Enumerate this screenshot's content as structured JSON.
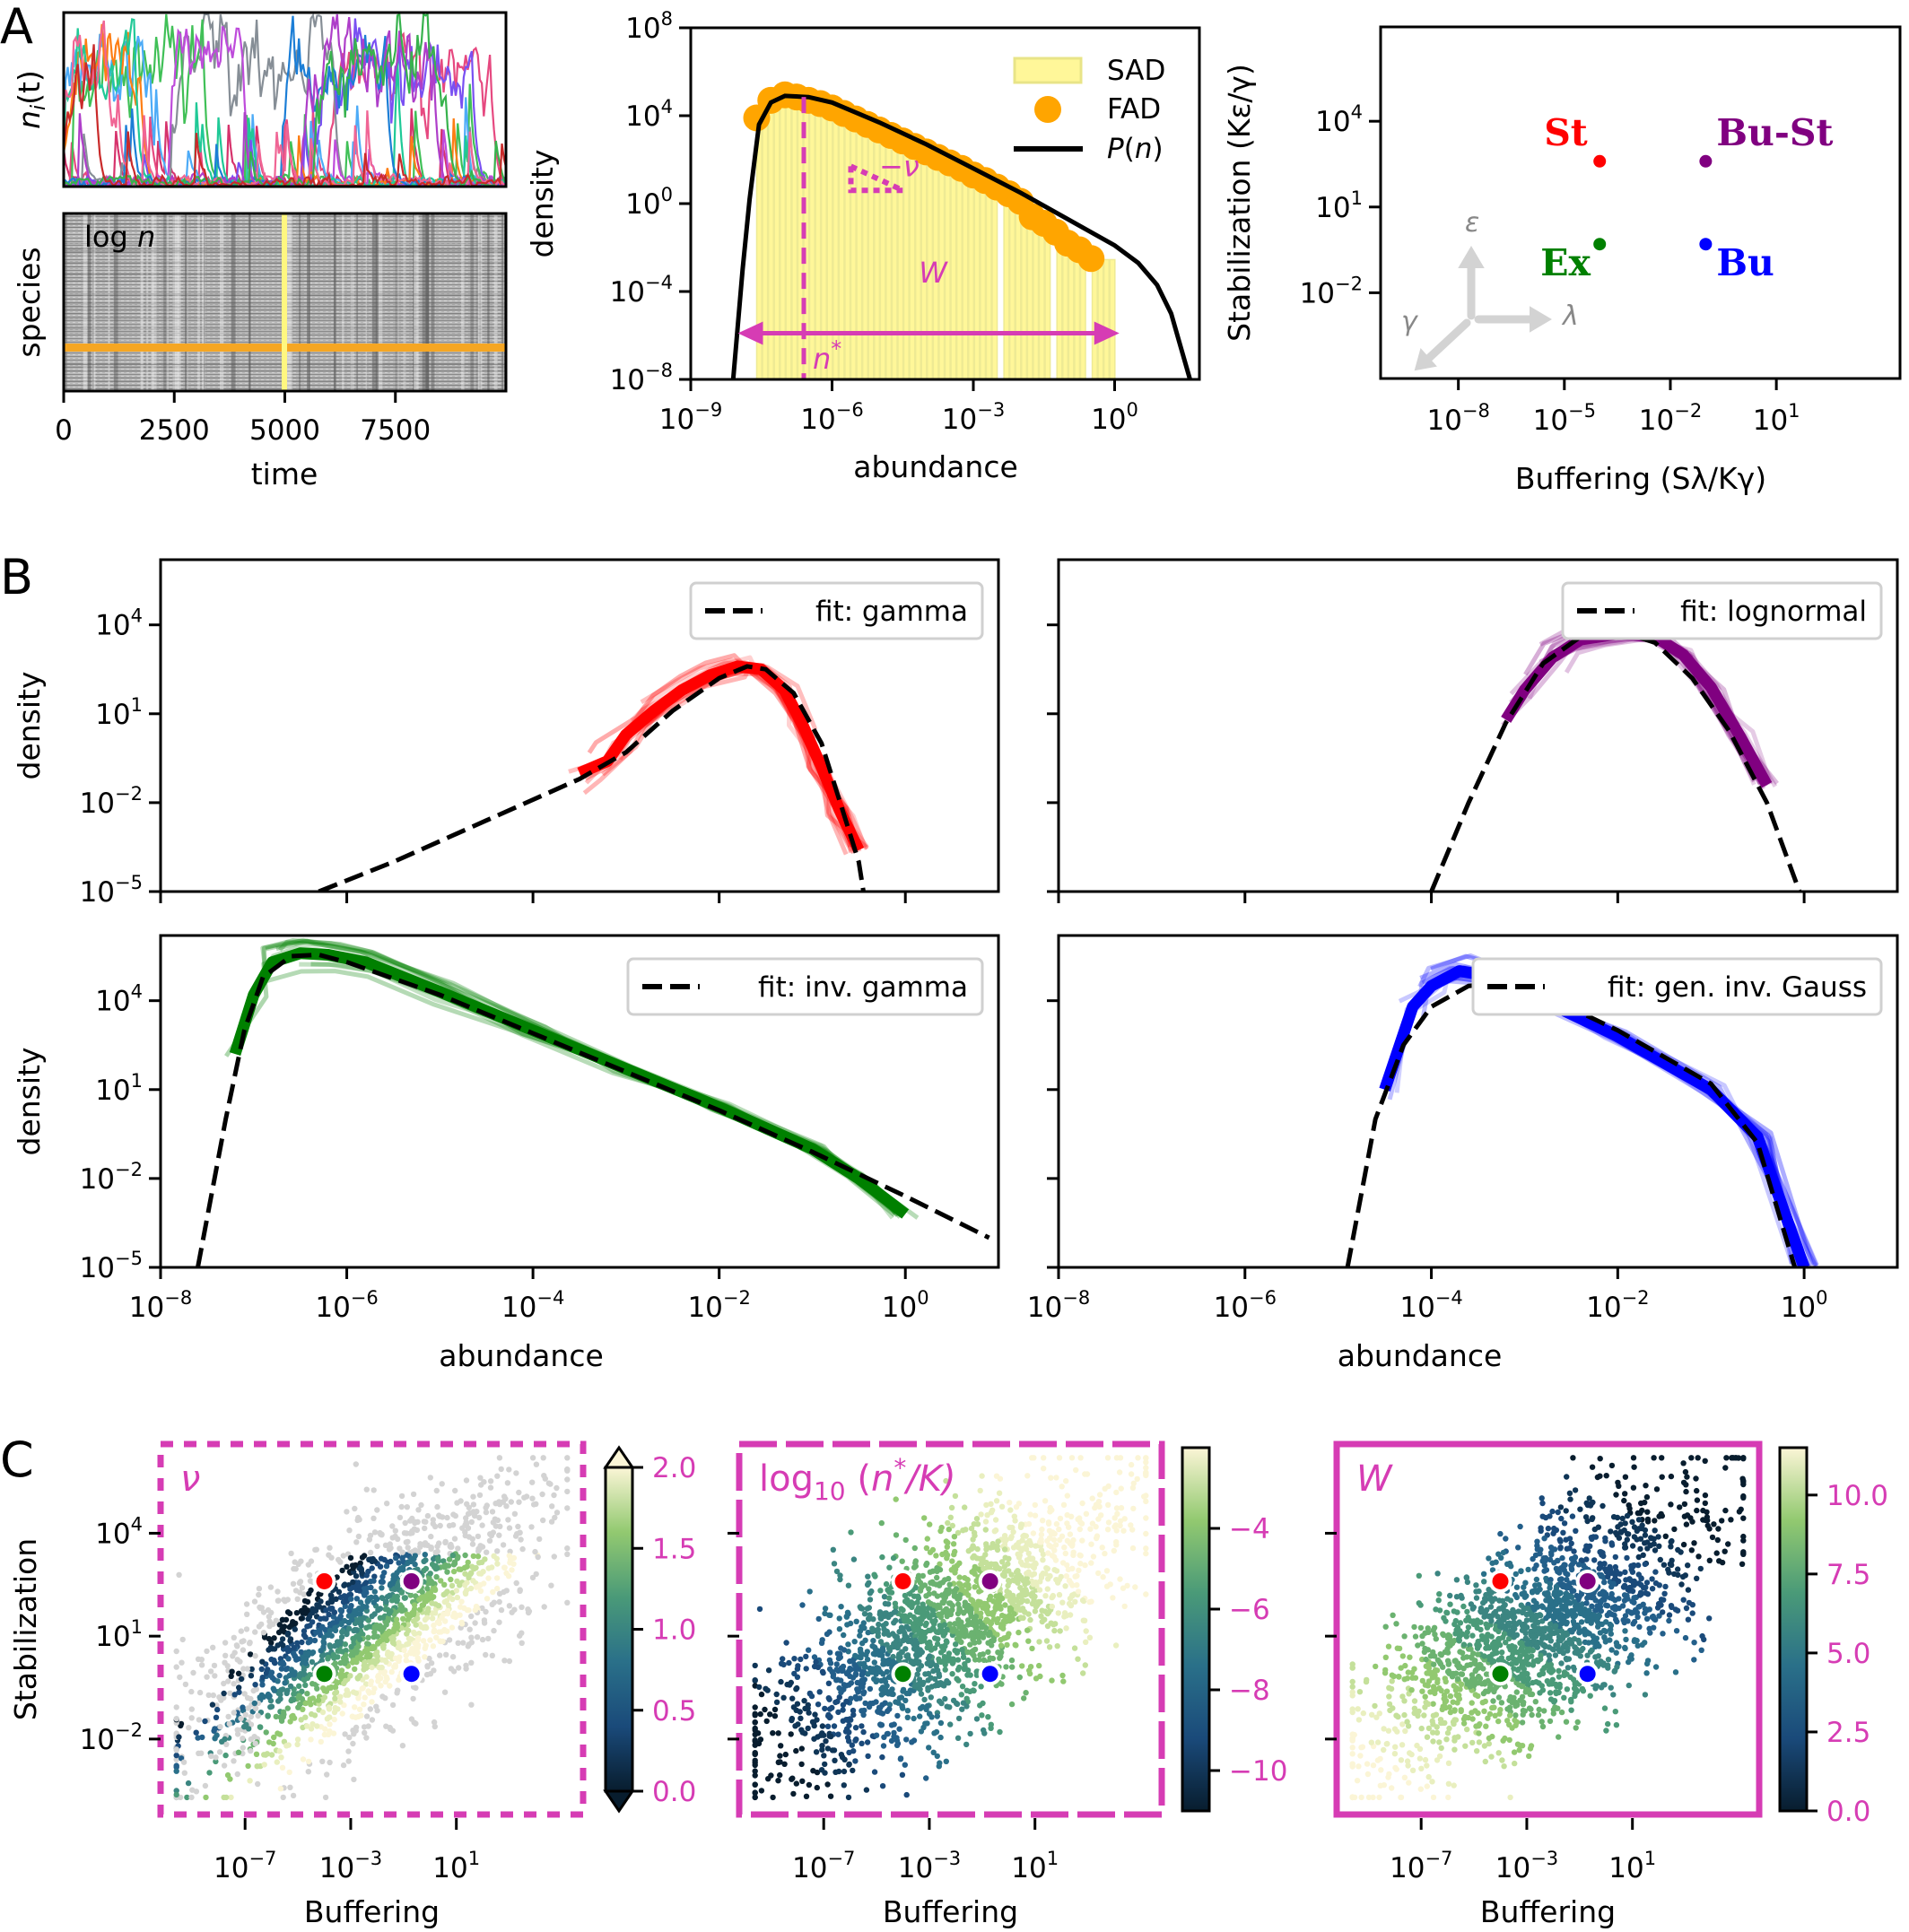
{
  "panel_letters": {
    "A": "A",
    "B": "B",
    "C": "C"
  },
  "colors": {
    "magenta": "#d63cb4",
    "sad_fill": "#fff799",
    "fad": "#ffa500",
    "St": "#ff0000",
    "Bu_St": "#800080",
    "Ex": "#008000",
    "Bu": "#0000ff",
    "heatmap_highlight_row": "#f5a623",
    "heatmap_highlight_col": "#fff780"
  },
  "chart_data": [
    {
      "id": "A-timeseries",
      "type": "line",
      "ylabel": "n_i(t)",
      "ylabel_display": [
        "n",
        "i",
        "(t)"
      ],
      "xlim": [
        0,
        10000
      ],
      "note": "many overlapping coloured species trajectories, no y tick labels",
      "series_colors": [
        "#d6336c",
        "#e64980",
        "#868e96",
        "#40c057",
        "#4dabf7",
        "#7950f2",
        "#be4bdb",
        "#fd7e14",
        "#20c997",
        "#1c7ed6",
        "#ae3ec9",
        "#f06595",
        "#37b24d",
        "#c92a2a"
      ]
    },
    {
      "id": "A-heatmap",
      "type": "heatmap",
      "annotation": "log n",
      "ylabel": "species",
      "xlabel": "time",
      "xticks": [
        0,
        2500,
        5000,
        7500
      ],
      "xtick_labels": [
        "0",
        "2500",
        "5000",
        "7500"
      ],
      "xlim": [
        0,
        10000
      ],
      "highlight_time": 5000,
      "highlight_species_fraction_from_top": 0.75
    },
    {
      "id": "A-distribution",
      "type": "bar",
      "xlabel": "abundance",
      "ylabel": "density",
      "xscale": "log",
      "yscale": "log",
      "xlim_log10": [
        -9,
        1.8
      ],
      "ylim_log10": [
        -8,
        8
      ],
      "xticks_log10": [
        -9,
        -6,
        -3,
        0
      ],
      "yticks_log10": [
        8,
        4,
        0,
        -4,
        -8
      ],
      "legend": [
        {
          "label": "SAD",
          "kind": "bar"
        },
        {
          "label": "FAD",
          "kind": "marker"
        },
        {
          "label": "P(n)",
          "kind": "line"
        }
      ],
      "legend_position": "top-right",
      "sad_bins_log10": [
        -7.6,
        0
      ],
      "fad_points": {
        "x_log10": [
          -7.6,
          -7.3,
          -7.0,
          -6.75,
          -6.5,
          -6.25,
          -6.0,
          -5.75,
          -5.5,
          -5.25,
          -5.0,
          -4.75,
          -4.5,
          -4.25,
          -4.0,
          -3.75,
          -3.5,
          -3.25,
          -3.0,
          -2.75,
          -2.5,
          -2.25,
          -2.0,
          -1.75,
          -1.5,
          -1.25,
          -1.0,
          -0.75,
          -0.5
        ],
        "y_log10": [
          3.9,
          4.7,
          4.95,
          4.85,
          4.7,
          4.55,
          4.35,
          4.1,
          3.85,
          3.6,
          3.35,
          3.1,
          2.85,
          2.6,
          2.35,
          2.1,
          1.85,
          1.6,
          1.3,
          1.05,
          0.75,
          0.45,
          0.1,
          -0.6,
          -0.9,
          -1.3,
          -1.8,
          -2.1,
          -2.5
        ]
      },
      "pn_curve": {
        "x_log10": [
          -8.1,
          -7.9,
          -7.75,
          -7.55,
          -7.3,
          -7.0,
          -6.5,
          -6.0,
          -5.0,
          -4.0,
          -3.0,
          -2.0,
          -1.0,
          0.0,
          0.5,
          0.9,
          1.2,
          1.4,
          1.6
        ],
        "y_log10": [
          -8,
          -3,
          0.2,
          3.6,
          4.6,
          4.9,
          4.85,
          4.6,
          3.7,
          2.7,
          1.6,
          0.5,
          -0.7,
          -1.9,
          -2.7,
          -3.7,
          -5.0,
          -6.5,
          -8
        ]
      },
      "annotations": {
        "n_star_log10": -6.6,
        "n_star_label": "n*",
        "slope_label": "−ν",
        "W_label": "W",
        "W_range_log10": [
          -8,
          0.1
        ]
      }
    },
    {
      "id": "A-phase",
      "type": "scatter",
      "xlabel": "Buffering (Sλ/Kγ)",
      "ylabel": "Stabilization (Kε/γ)",
      "xscale": "log",
      "yscale": "log",
      "xticks_log10": [
        -8,
        -5,
        -2,
        1
      ],
      "yticks_log10": [
        4,
        1,
        -2
      ],
      "xlim_log10": [
        -10.2,
        4.5
      ],
      "ylim_log10": [
        -5.0,
        7.3
      ],
      "points": [
        {
          "label": "St",
          "x_log10": -4,
          "y_log10": 2.6,
          "color": "#ff0000"
        },
        {
          "label": "Bu-St",
          "x_log10": -1,
          "y_log10": 2.6,
          "color": "#800080"
        },
        {
          "label": "Ex",
          "x_log10": -4,
          "y_log10": -0.3,
          "color": "#008000"
        },
        {
          "label": "Bu",
          "x_log10": -1,
          "y_log10": -0.3,
          "color": "#0000ff"
        }
      ],
      "arrow_labels": {
        "up": "ε",
        "right": "λ",
        "down_left": "γ"
      }
    },
    {
      "id": "B-gamma",
      "type": "line",
      "ylabel": "density",
      "xscale": "log",
      "yscale": "log",
      "xlim_log10": [
        -8,
        1
      ],
      "ylim_log10": [
        -5,
        6.2
      ],
      "yticks_log10": [
        4,
        1,
        -2,
        -5
      ],
      "xticks_log10": [
        -8,
        -6,
        -4,
        -2,
        0
      ],
      "legend": "fit: gamma",
      "legend_position": "top-right",
      "color": "#ff0000",
      "main_series": {
        "x_log10": [
          -3.5,
          -3.2,
          -3.0,
          -2.7,
          -2.4,
          -2.1,
          -1.8,
          -1.55,
          -1.3,
          -1.1,
          -0.9,
          -0.7,
          -0.5
        ],
        "y_log10": [
          -1.0,
          -0.6,
          0.3,
          1.1,
          1.8,
          2.3,
          2.6,
          2.5,
          1.8,
          0.6,
          -0.8,
          -2.3,
          -3.6
        ]
      },
      "fit": {
        "x_log10": [
          -6.3,
          -5.5,
          -4.5,
          -3.5,
          -3.0,
          -2.5,
          -2.0,
          -1.7,
          -1.5,
          -1.2,
          -0.9,
          -0.7,
          -0.5,
          -0.45
        ],
        "y_log10": [
          -5,
          -4.0,
          -2.6,
          -1.2,
          -0.3,
          1.1,
          2.2,
          2.6,
          2.5,
          1.7,
          0.0,
          -2.0,
          -4.0,
          -5.0
        ]
      }
    },
    {
      "id": "B-lognormal",
      "type": "line",
      "xscale": "log",
      "yscale": "log",
      "xlim_log10": [
        -8,
        1
      ],
      "ylim_log10": [
        -5,
        6.2
      ],
      "legend": "fit: lognormal",
      "legend_position": "top-right",
      "color": "#800080",
      "main_series": {
        "x_log10": [
          -3.2,
          -3.0,
          -2.7,
          -2.4,
          -2.0,
          -1.6,
          -1.3,
          -1.0,
          -0.7,
          -0.4
        ],
        "y_log10": [
          0.8,
          1.8,
          2.9,
          3.5,
          3.7,
          3.6,
          3.0,
          1.9,
          0.3,
          -1.4
        ]
      },
      "fit": {
        "x_log10": [
          -4.0,
          -3.6,
          -3.2,
          -2.8,
          -2.4,
          -2.0,
          -1.6,
          -1.2,
          -0.8,
          -0.4,
          -0.05
        ],
        "y_log10": [
          -5,
          -2.0,
          0.7,
          2.7,
          3.6,
          3.8,
          3.4,
          2.2,
          0.4,
          -2.0,
          -5.0
        ]
      }
    },
    {
      "id": "B-inv-gamma",
      "type": "line",
      "ylabel": "density",
      "xlabel": "abundance",
      "xscale": "log",
      "yscale": "log",
      "xlim_log10": [
        -8,
        1
      ],
      "ylim_log10": [
        -5,
        6.2
      ],
      "yticks_log10": [
        4,
        1,
        -2,
        -5
      ],
      "xticks_log10": [
        -8,
        -6,
        -4,
        -2,
        0
      ],
      "legend": "fit: inv. gamma",
      "legend_position": "top-right",
      "color": "#008000",
      "main_series": {
        "x_log10": [
          -7.2,
          -7.0,
          -6.8,
          -6.5,
          -6.2,
          -5.8,
          -5.0,
          -4.0,
          -3.0,
          -2.0,
          -1.0,
          -0.5,
          0.0
        ],
        "y_log10": [
          2.2,
          4.2,
          5.3,
          5.6,
          5.55,
          5.3,
          4.3,
          3.0,
          1.7,
          0.4,
          -1.0,
          -2.0,
          -3.2
        ]
      },
      "fit": {
        "x_log10": [
          -7.6,
          -7.3,
          -7.1,
          -6.9,
          -6.6,
          -6.3,
          -6.0,
          -5.0,
          -4.0,
          -3.0,
          -2.0,
          -1.0,
          0.0,
          0.9
        ],
        "y_log10": [
          -5,
          0.0,
          3.0,
          4.8,
          5.5,
          5.55,
          5.3,
          4.2,
          2.9,
          1.6,
          0.3,
          -1.1,
          -2.6,
          -4.0
        ]
      }
    },
    {
      "id": "B-gen-inv-gauss",
      "type": "line",
      "xlabel": "abundance",
      "xscale": "log",
      "yscale": "log",
      "xlim_log10": [
        -8,
        1
      ],
      "ylim_log10": [
        -5,
        6.2
      ],
      "xticks_log10": [
        -8,
        -6,
        -4,
        -2,
        0
      ],
      "legend": "fit: gen. inv. Gauss",
      "legend_position": "top-right",
      "color": "#0000ff",
      "main_series": {
        "x_log10": [
          -4.5,
          -4.2,
          -4.0,
          -3.7,
          -3.3,
          -3.0,
          -2.0,
          -1.0,
          -0.5,
          0.0
        ],
        "y_log10": [
          1.0,
          3.8,
          4.5,
          5.0,
          4.8,
          4.3,
          2.8,
          1.0,
          -0.6,
          -5.0
        ]
      },
      "fit": {
        "x_log10": [
          -4.9,
          -4.6,
          -4.3,
          -4.0,
          -3.6,
          -3.2,
          -2.8,
          -2.0,
          -1.0,
          -0.5,
          -0.1
        ],
        "y_log10": [
          -5,
          0.0,
          2.5,
          3.8,
          4.5,
          4.6,
          4.2,
          3.0,
          1.2,
          -0.8,
          -5.0
        ]
      }
    },
    {
      "id": "C-nu",
      "type": "scatter",
      "label": "ν",
      "xlabel": "Buffering",
      "ylabel": "Stabilization",
      "xticks_log10": [
        -7,
        -3,
        1
      ],
      "yticks_log10": [
        4,
        1,
        -2
      ],
      "colorbar": {
        "ticks": [
          "0.0",
          "0.5",
          "1.0",
          "1.5",
          "2.0"
        ],
        "range": [
          0,
          2
        ],
        "extend": "both"
      },
      "frame_style": "dotted",
      "landmarks": [
        "St",
        "Bu-St",
        "Ex",
        "Bu"
      ]
    },
    {
      "id": "C-log-nstar",
      "type": "scatter",
      "label": "log10(n*/K)",
      "label_parts": [
        "log",
        "10",
        "(",
        "n",
        "*",
        "/K)"
      ],
      "xlabel": "Buffering",
      "xticks_log10": [
        -7,
        -3,
        1
      ],
      "colorbar": {
        "ticks": [
          "−4",
          "−6",
          "−8",
          "−10"
        ],
        "range": [
          -11,
          -2
        ]
      },
      "frame_style": "dashed",
      "landmarks": [
        "St",
        "Bu-St",
        "Ex",
        "Bu"
      ]
    },
    {
      "id": "C-W",
      "type": "scatter",
      "label": "W",
      "xlabel": "Buffering",
      "xticks_log10": [
        -7,
        -3,
        1
      ],
      "colorbar": {
        "ticks": [
          "10.0",
          "7.5",
          "5.0",
          "2.5",
          "0.0"
        ],
        "range": [
          0,
          11.5
        ]
      },
      "frame_style": "solid",
      "landmarks": [
        "St",
        "Bu-St",
        "Ex",
        "Bu"
      ]
    }
  ]
}
